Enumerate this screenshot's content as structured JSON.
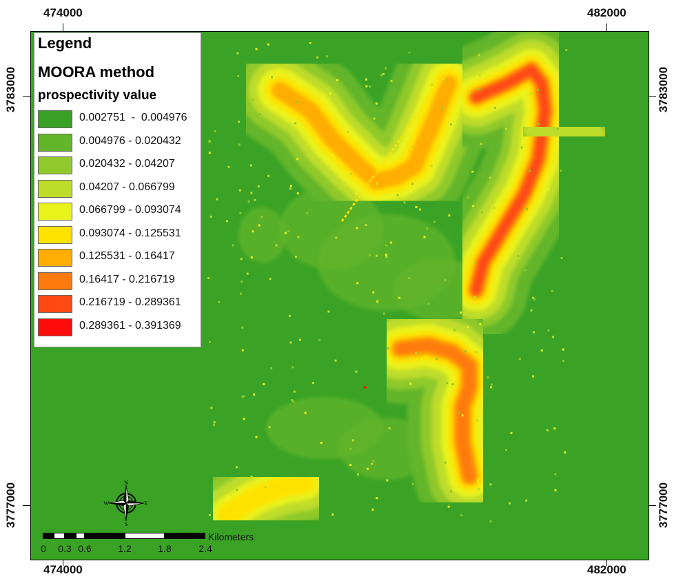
{
  "axes": {
    "top_left_label": "474000",
    "top_right_label": "482000",
    "bottom_left_label": "474000",
    "bottom_right_label": "482000",
    "left_top_label": "3783000",
    "left_bottom_label": "3777000",
    "right_top_label": "3783000",
    "right_bottom_label": "3777000"
  },
  "legend": {
    "title": "Legend",
    "subtitle": "MOORA method",
    "subtitle2": "prospectivity value",
    "classes": [
      {
        "label": "0.002751  -  0.004976",
        "color": "#38a125"
      },
      {
        "label": "0.004976 - 0.020432",
        "color": "#63b52a"
      },
      {
        "label": "0.020432 - 0.04207",
        "color": "#8fc92c"
      },
      {
        "label": "0.04207 - 0.066799",
        "color": "#bedc2a"
      },
      {
        "label": "0.066799 - 0.093074",
        "color": "#e9f21a"
      },
      {
        "label": "0.093074 - 0.125531",
        "color": "#ffe300"
      },
      {
        "label": "0.125531 - 0.16417",
        "color": "#ffad00"
      },
      {
        "label": "0.16417 - 0.216719",
        "color": "#ff7a0c"
      },
      {
        "label": "0.216719 - 0.289361",
        "color": "#ff4a14"
      },
      {
        "label": "0.289361 - 0.391369",
        "color": "#ff0d0d"
      }
    ]
  },
  "scale_bar": {
    "unit": "Kilometers",
    "labels": [
      "0",
      "0.3",
      "0.6",
      "1.2",
      "1.8",
      "2.4"
    ]
  },
  "north_arrow": {
    "icon": "compass-rose-icon",
    "n": "N",
    "s": "S",
    "e": "E",
    "w": "W"
  }
}
